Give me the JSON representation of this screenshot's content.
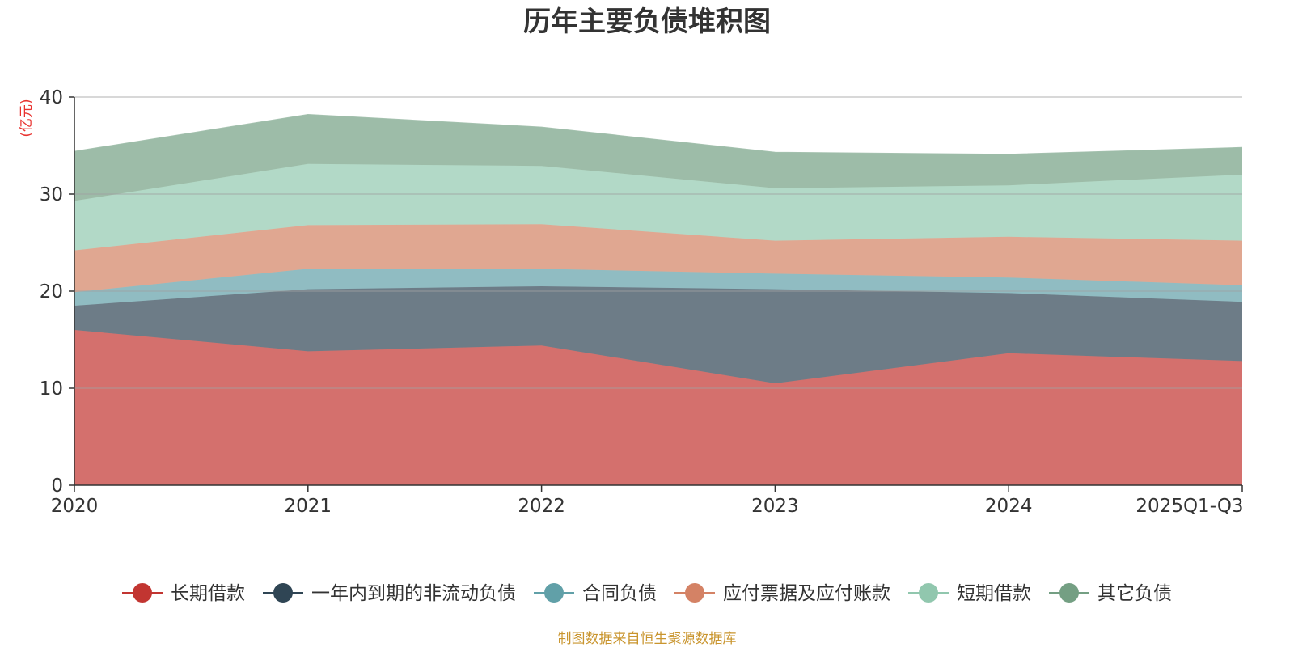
{
  "chart_data": {
    "type": "area",
    "stacked": true,
    "title": "历年主要负债堆积图",
    "ylabel": "(亿元)",
    "xlabel": "",
    "categories": [
      "2020",
      "2021",
      "2022",
      "2023",
      "2024",
      "2025Q1-Q3"
    ],
    "ylim": [
      0,
      40
    ],
    "yticks": [
      "0",
      "10",
      "20",
      "30",
      "40"
    ],
    "grid": true,
    "legend_position": "bottom",
    "series": [
      {
        "name": "长期借款",
        "color": "#c23531",
        "fill": "#d4706d",
        "values": [
          16.0,
          13.8,
          14.4,
          10.5,
          13.6,
          12.8
        ]
      },
      {
        "name": "一年内到期的非流动负债",
        "color": "#2f4554",
        "fill": "#6d7c87",
        "values": [
          2.5,
          6.4,
          6.1,
          9.7,
          6.2,
          6.1
        ]
      },
      {
        "name": "合同负债",
        "color": "#61a0a8",
        "fill": "#90bcc2",
        "values": [
          1.4,
          2.1,
          1.8,
          1.6,
          1.6,
          1.7
        ]
      },
      {
        "name": "应付票据及应付账款",
        "color": "#d48265",
        "fill": "#e0a791",
        "values": [
          4.3,
          4.5,
          4.6,
          3.4,
          4.2,
          4.6
        ]
      },
      {
        "name": "短期借款",
        "color": "#91c7ae",
        "fill": "#b2d9c7",
        "values": [
          5.1,
          6.3,
          6.0,
          5.4,
          5.3,
          6.8
        ]
      },
      {
        "name": "其它负债",
        "color": "#749f83",
        "fill": "#9dbca8",
        "values": [
          5.1,
          5.1,
          4.0,
          3.7,
          3.2,
          2.8
        ]
      }
    ]
  },
  "source_note": "制图数据来自恒生聚源数据库"
}
